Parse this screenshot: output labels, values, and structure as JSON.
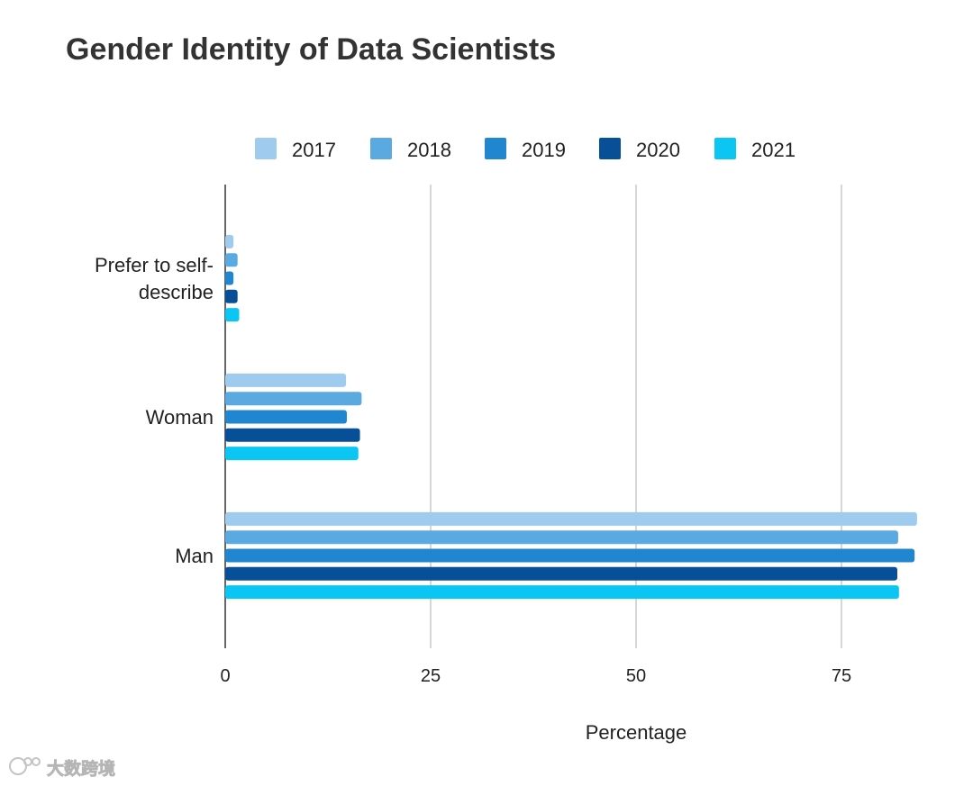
{
  "chart_data": {
    "type": "bar",
    "orientation": "horizontal",
    "title": "Gender Identity of Data Scientists",
    "xlabel": "Percentage",
    "ylabel": "",
    "xlim": [
      0,
      80
    ],
    "xticks": [
      0,
      25,
      50,
      75
    ],
    "grid": true,
    "legend_position": "top",
    "categories": [
      "Prefer to self-describe",
      "Woman",
      "Man"
    ],
    "category_label_lines": [
      [
        "Prefer to self-",
        "describe"
      ],
      [
        "Woman"
      ],
      [
        "Man"
      ]
    ],
    "series": [
      {
        "name": "2017",
        "color": "#9fcbee",
        "values": [
          1.0,
          14.7,
          84.2
        ]
      },
      {
        "name": "2018",
        "color": "#5aa9e0",
        "values": [
          1.5,
          16.6,
          81.9
        ]
      },
      {
        "name": "2019",
        "color": "#1f86cf",
        "values": [
          1.0,
          14.8,
          83.9
        ]
      },
      {
        "name": "2020",
        "color": "#075098",
        "values": [
          1.5,
          16.4,
          81.8
        ]
      },
      {
        "name": "2021",
        "color": "#0bc5f2",
        "values": [
          1.7,
          16.2,
          82.0
        ]
      }
    ]
  },
  "watermark": {
    "text": "大数跨境"
  }
}
